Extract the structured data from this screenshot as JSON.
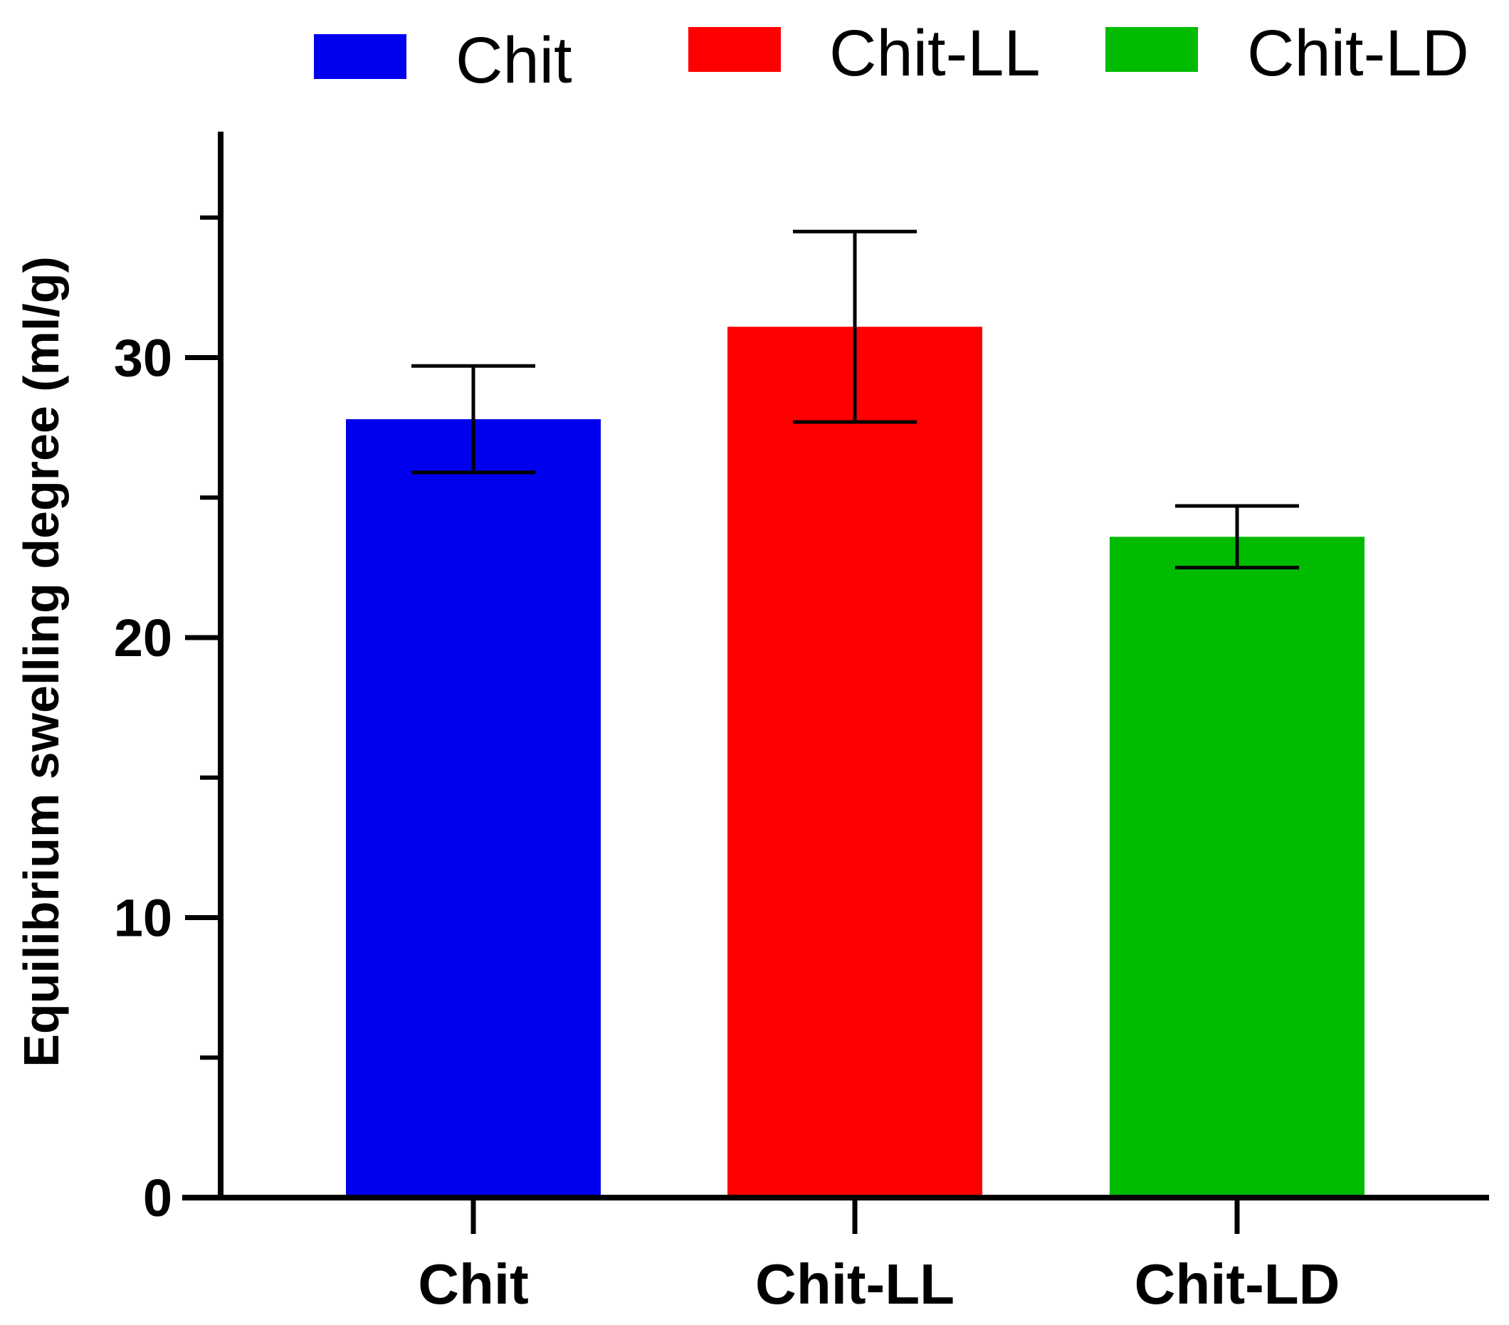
{
  "chart_data": {
    "type": "bar",
    "title": "",
    "xlabel": "",
    "ylabel": "Equilibrium swelling degree (ml/g)",
    "categories": [
      "Chit",
      "Chit-LL",
      "Chit-LD"
    ],
    "values": [
      27.8,
      31.1,
      23.6
    ],
    "error": [
      1.9,
      3.4,
      1.1
    ],
    "colors": [
      "#0000ee",
      "#ff0000",
      "#00bb00"
    ],
    "ylim": [
      0,
      38
    ],
    "yticks_major": [
      0,
      10,
      20,
      30
    ],
    "ytick_labels": [
      "0",
      "10",
      "20",
      "30"
    ],
    "yticks_minor": [
      5,
      15,
      25,
      35
    ],
    "legend": {
      "position": "top",
      "entries": [
        {
          "label": "Chit",
          "color": "#0000ee"
        },
        {
          "label": "Chit-LL",
          "color": "#ff0000"
        },
        {
          "label": "Chit-LD",
          "color": "#00bb00"
        }
      ]
    },
    "grid": false
  }
}
